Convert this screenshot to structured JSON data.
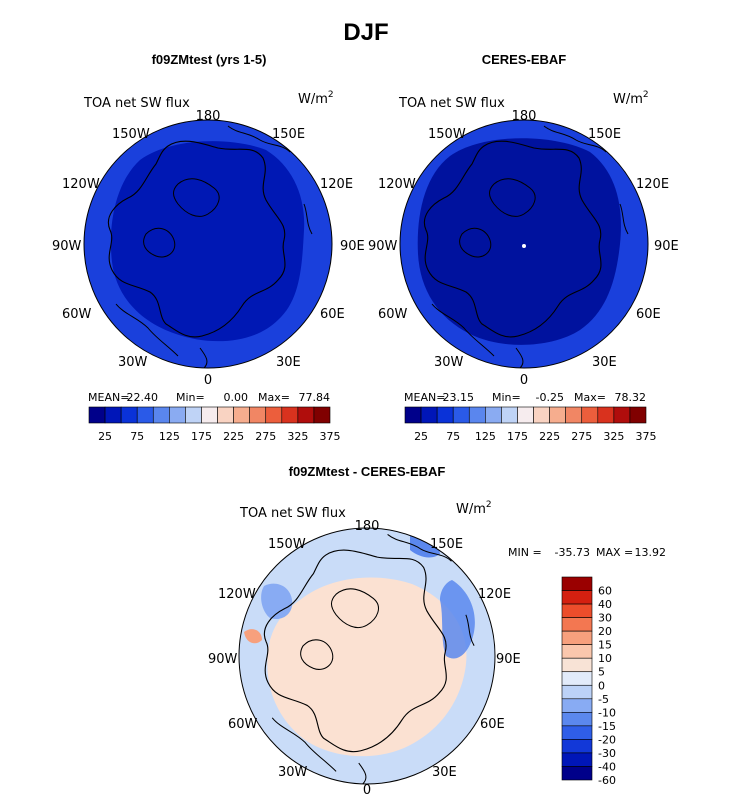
{
  "page": {
    "title": "DJF",
    "colors": {
      "abs_scale": [
        "#00008a",
        "#0016b8",
        "#0a32d8",
        "#2a5ae8",
        "#5a86ee",
        "#8aabf2",
        "#bfd3f6",
        "#f6ecee",
        "#f9d3c2",
        "#f6ad8e",
        "#f18664",
        "#ec5e3c",
        "#d9321e",
        "#b00d0c",
        "#800000"
      ],
      "diff_scale": [
        "#00008a",
        "#0016b8",
        "#1238d8",
        "#2f5ee8",
        "#5b88ee",
        "#88abf3",
        "#bcd2f7",
        "#e2ebfa",
        "#f8e3d6",
        "#fac7ad",
        "#f7a07d",
        "#f37751",
        "#ec4d2b",
        "#d42010",
        "#9a0000"
      ]
    }
  },
  "panels": [
    {
      "id": "model",
      "title": "f09ZMtest (yrs 1-5)",
      "var_label": "TOA net SW flux",
      "units": "W/m",
      "units_sup": "2",
      "lon_labels": {
        "top": "180",
        "ul1": "150W",
        "ul2": "120W",
        "left": "90W",
        "ll1": "60W",
        "ll2": "30W",
        "bottom": "0",
        "ur1": "150E",
        "ur2": "120E",
        "right": "90E",
        "lr1": "60E",
        "lr2": "30E"
      },
      "stats": {
        "mean_label": "MEAN=",
        "mean": "22.40",
        "min_label": "Min=",
        "min": "0.00",
        "max_label": "Max=",
        "max": "77.84"
      },
      "colorbar_labels": [
        "25",
        "75",
        "125",
        "175",
        "225",
        "275",
        "325",
        "375"
      ]
    },
    {
      "id": "obs",
      "title": "CERES-EBAF",
      "var_label": "TOA net SW flux",
      "units": "W/m",
      "units_sup": "2",
      "lon_labels": {
        "top": "180",
        "ul1": "150W",
        "ul2": "120W",
        "left": "90W",
        "ll1": "60W",
        "ll2": "30W",
        "bottom": "0",
        "ur1": "150E",
        "ur2": "120E",
        "right": "90E",
        "lr1": "60E",
        "lr2": "30E"
      },
      "stats": {
        "mean_label": "MEAN=",
        "mean": "23.15",
        "min_label": "Min=",
        "min": "-0.25",
        "max_label": "Max=",
        "max": "78.32"
      },
      "colorbar_labels": [
        "25",
        "75",
        "125",
        "175",
        "225",
        "275",
        "325",
        "375"
      ]
    },
    {
      "id": "diff",
      "title": "f09ZMtest - CERES-EBAF",
      "var_label": "TOA net SW flux",
      "units": "W/m",
      "units_sup": "2",
      "lon_labels": {
        "top": "180",
        "ul1": "150W",
        "ul2": "120W",
        "left": "90W",
        "ll1": "60W",
        "ll2": "30W",
        "bottom": "0",
        "ur1": "150E",
        "ur2": "120E",
        "right": "90E",
        "lr1": "60E",
        "lr2": "30E"
      },
      "stats": {
        "min_label": "MIN =",
        "min": "-35.73",
        "max_label": "MAX =",
        "max": "13.92"
      },
      "colorbar_labels": [
        "60",
        "40",
        "30",
        "20",
        "15",
        "10",
        "5",
        "0",
        "-5",
        "-10",
        "-15",
        "-20",
        "-30",
        "-40",
        "-60"
      ]
    }
  ]
}
